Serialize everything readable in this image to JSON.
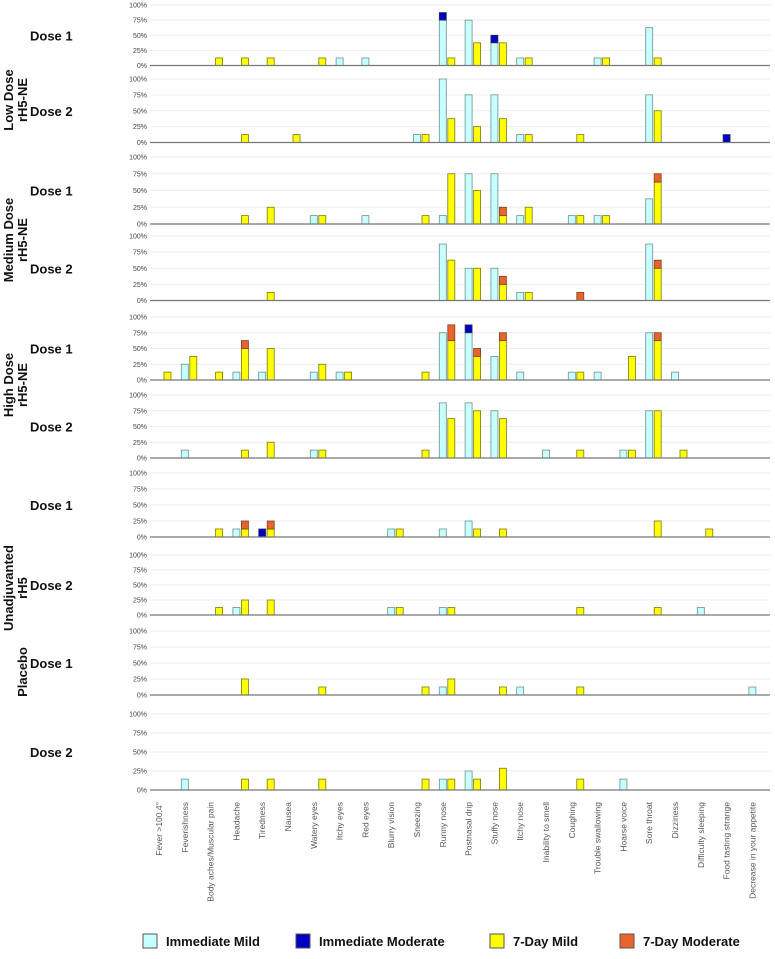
{
  "chart_data": {
    "type": "bar",
    "stacked": true,
    "ylim": [
      0,
      100
    ],
    "yticks": [
      "0%",
      "25%",
      "50%",
      "75%",
      "100%"
    ],
    "grid": true,
    "legend_placement": "bottom",
    "categories": [
      "Fever >100.4°",
      "Feverishness",
      "Body aches/Muscular pain",
      "Headache",
      "Tiredness",
      "Nausea",
      "Watery eyes",
      "Itchy eyes",
      "Red eyes",
      "Blurry vision",
      "Sneezing",
      "Runny nose",
      "Postnasal drip",
      "Stuffy nose",
      "Itchy nose",
      "Inability to smell",
      "Coughing",
      "Trouble swallowing",
      "Hoarse voice",
      "Sore throat",
      "Dizziness",
      "Difficulty sleeping",
      "Food tasting strange",
      "Decrease in your appetite"
    ],
    "series_names": {
      "immediate_mild": "Immediate Mild",
      "immediate_moderate": "Immediate Moderate",
      "day7_mild": "7-Day Mild",
      "day7_moderate": "7-Day Moderate"
    },
    "colors": {
      "immediate_mild": "#c8ffff",
      "immediate_moderate": "#0000c0",
      "day7_mild": "#ffff00",
      "day7_moderate": "#e8642c"
    },
    "groups": [
      "Low Dose rH5-NE",
      "Medium Dose rH5-NE",
      "High Dose rH5-NE",
      "Unadjuvanted rH5",
      "Placebo"
    ],
    "panels": [
      {
        "group": 0,
        "dose": "Dose 1",
        "immediate_mild": {
          "Itchy eyes": 12.5,
          "Red eyes": 12.5,
          "Runny nose": 75,
          "Postnasal drip": 75,
          "Stuffy nose": 37.5,
          "Itchy nose": 12.5,
          "Trouble swallowing": 12.5,
          "Sore throat": 62.5
        },
        "immediate_moderate": {
          "Runny nose": 12.5,
          "Stuffy nose": 12.5
        },
        "day7_mild": {
          "Body aches/Muscular pain": 12.5,
          "Headache": 12.5,
          "Tiredness": 12.5,
          "Watery eyes": 12.5,
          "Runny nose": 12.5,
          "Postnasal drip": 37.5,
          "Stuffy nose": 37.5,
          "Itchy nose": 12.5,
          "Trouble swallowing": 12.5,
          "Sore throat": 12.5
        },
        "day7_moderate": {}
      },
      {
        "group": 0,
        "dose": "Dose 2",
        "immediate_mild": {
          "Sneezing": 12.5,
          "Runny nose": 100,
          "Postnasal drip": 75,
          "Stuffy nose": 75,
          "Itchy nose": 12.5,
          "Sore throat": 75
        },
        "immediate_moderate": {
          "Food tasting strange": 12.5
        },
        "day7_mild": {
          "Headache": 12.5,
          "Nausea": 12.5,
          "Sneezing": 12.5,
          "Runny nose": 37.5,
          "Postnasal drip": 25,
          "Stuffy nose": 37.5,
          "Itchy nose": 12.5,
          "Coughing": 12.5,
          "Sore throat": 50
        },
        "day7_moderate": {}
      },
      {
        "group": 1,
        "dose": "Dose 1",
        "immediate_mild": {
          "Watery eyes": 12.5,
          "Red eyes": 12.5,
          "Runny nose": 12.5,
          "Postnasal drip": 75,
          "Stuffy nose": 75,
          "Itchy nose": 12.5,
          "Coughing": 12.5,
          "Trouble swallowing": 12.5,
          "Sore throat": 37.5
        },
        "immediate_moderate": {},
        "day7_mild": {
          "Headache": 12.5,
          "Tiredness": 25,
          "Watery eyes": 12.5,
          "Sneezing": 12.5,
          "Runny nose": 75,
          "Postnasal drip": 50,
          "Stuffy nose": 12.5,
          "Itchy nose": 25,
          "Coughing": 12.5,
          "Trouble swallowing": 12.5,
          "Sore throat": 62.5
        },
        "day7_moderate": {
          "Stuffy nose": 12.5,
          "Sore throat": 12.5
        }
      },
      {
        "group": 1,
        "dose": "Dose 2",
        "immediate_mild": {
          "Runny nose": 87.5,
          "Postnasal drip": 50,
          "Stuffy nose": 50,
          "Itchy nose": 12.5,
          "Sore throat": 87.5
        },
        "immediate_moderate": {},
        "day7_mild": {
          "Tiredness": 12.5,
          "Runny nose": 62.5,
          "Postnasal drip": 50,
          "Stuffy nose": 25,
          "Itchy nose": 12.5,
          "Sore throat": 50
        },
        "day7_moderate": {
          "Stuffy nose": 12.5,
          "Coughing": 12.5,
          "Sore throat": 12.5
        }
      },
      {
        "group": 2,
        "dose": "Dose 1",
        "immediate_mild": {
          "Feverishness": 25,
          "Headache": 12.5,
          "Tiredness": 12.5,
          "Watery eyes": 12.5,
          "Itchy eyes": 12.5,
          "Runny nose": 75,
          "Postnasal drip": 75,
          "Stuffy nose": 37.5,
          "Itchy nose": 12.5,
          "Coughing": 12.5,
          "Trouble swallowing": 12.5,
          "Sore throat": 75,
          "Dizziness": 12.5
        },
        "immediate_moderate": {
          "Postnasal drip": 12.5
        },
        "day7_mild": {
          "Fever >100.4°": 12.5,
          "Feverishness": 37.5,
          "Body aches/Muscular pain": 12.5,
          "Headache": 50,
          "Tiredness": 50,
          "Watery eyes": 25,
          "Itchy eyes": 12.5,
          "Sneezing": 12.5,
          "Runny nose": 62.5,
          "Postnasal drip": 37.5,
          "Stuffy nose": 62.5,
          "Coughing": 12.5,
          "Hoarse voice": 37.5,
          "Sore throat": 62.5
        },
        "day7_moderate": {
          "Headache": 12.5,
          "Runny nose": 25,
          "Postnasal drip": 12.5,
          "Stuffy nose": 12.5,
          "Sore throat": 12.5
        }
      },
      {
        "group": 2,
        "dose": "Dose 2",
        "immediate_mild": {
          "Feverishness": 12.5,
          "Watery eyes": 12.5,
          "Runny nose": 87.5,
          "Postnasal drip": 87.5,
          "Stuffy nose": 75,
          "Inability to smell": 12.5,
          "Hoarse voice": 12.5,
          "Sore throat": 75
        },
        "immediate_moderate": {},
        "day7_mild": {
          "Headache": 12.5,
          "Tiredness": 25,
          "Watery eyes": 12.5,
          "Sneezing": 12.5,
          "Runny nose": 62.5,
          "Postnasal drip": 75,
          "Stuffy nose": 62.5,
          "Coughing": 12.5,
          "Hoarse voice": 12.5,
          "Sore throat": 75,
          "Dizziness": 12.5
        },
        "day7_moderate": {}
      },
      {
        "group": 3,
        "dose": "Dose 1",
        "immediate_mild": {
          "Headache": 12.5,
          "Blurry vision": 12.5,
          "Runny nose": 12.5,
          "Postnasal drip": 25
        },
        "immediate_moderate": {
          "Tiredness": 12.5
        },
        "day7_mild": {
          "Body aches/Muscular pain": 12.5,
          "Headache": 12.5,
          "Tiredness": 12.5,
          "Blurry vision": 12.5,
          "Postnasal drip": 12.5,
          "Stuffy nose": 12.5,
          "Sore throat": 25,
          "Difficulty sleeping": 12.5
        },
        "day7_moderate": {
          "Headache": 12.5,
          "Tiredness": 12.5
        }
      },
      {
        "group": 3,
        "dose": "Dose 2",
        "immediate_mild": {
          "Headache": 12.5,
          "Blurry vision": 12.5,
          "Runny nose": 12.5,
          "Difficulty sleeping": 12.5
        },
        "immediate_moderate": {},
        "day7_mild": {
          "Body aches/Muscular pain": 12.5,
          "Headache": 25,
          "Tiredness": 25,
          "Blurry vision": 12.5,
          "Runny nose": 12.5,
          "Coughing": 12.5,
          "Sore throat": 12.5
        },
        "day7_moderate": {}
      },
      {
        "group": 4,
        "dose": "Dose 1",
        "immediate_mild": {
          "Runny nose": 12.5,
          "Itchy nose": 12.5,
          "Decrease in your appetite": 12.5
        },
        "immediate_moderate": {},
        "day7_mild": {
          "Headache": 25,
          "Watery eyes": 12.5,
          "Sneezing": 12.5,
          "Runny nose": 25,
          "Stuffy nose": 12.5,
          "Coughing": 12.5
        },
        "day7_moderate": {}
      },
      {
        "group": 4,
        "dose": "Dose 2",
        "immediate_mild": {
          "Feverishness": 14.3,
          "Runny nose": 14.3,
          "Postnasal drip": 25,
          "Hoarse voice": 14.3
        },
        "immediate_moderate": {},
        "day7_mild": {
          "Headache": 14.3,
          "Tiredness": 14.3,
          "Watery eyes": 14.3,
          "Sneezing": 14.3,
          "Runny nose": 14.3,
          "Postnasal drip": 14.3,
          "Stuffy nose": 28.6,
          "Coughing": 14.3
        },
        "day7_moderate": {}
      }
    ]
  }
}
